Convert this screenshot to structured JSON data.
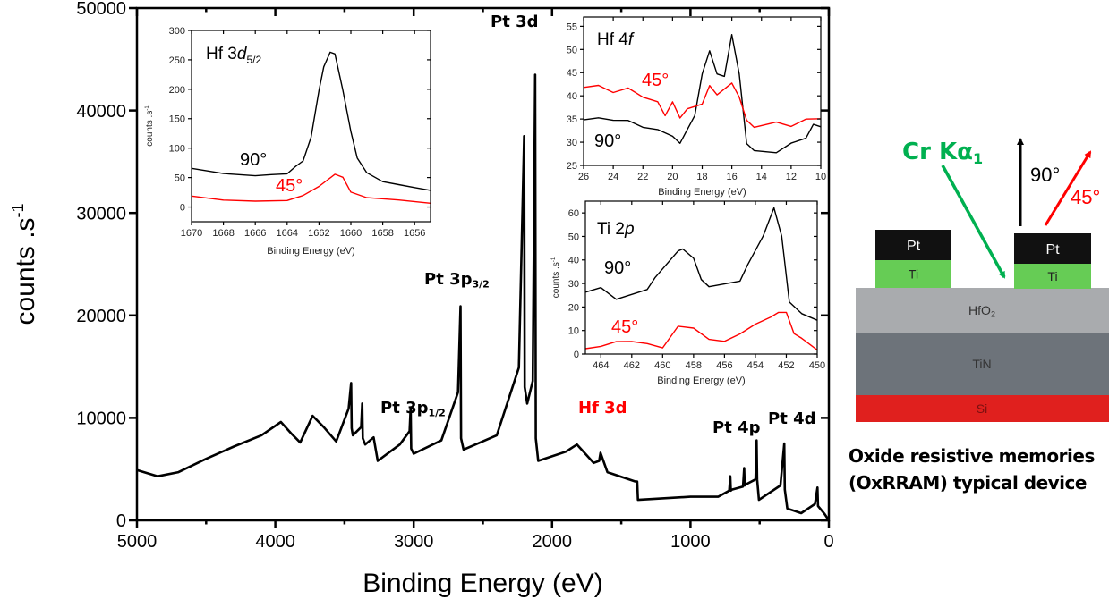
{
  "chart_data": [
    {
      "type": "line",
      "xlabel": "Binding Energy (eV)",
      "ylabel": "counts .s-1",
      "xlim": [
        5000,
        0
      ],
      "ylim": [
        0,
        50000
      ],
      "x_reversed": true,
      "xticks": [
        5000,
        4000,
        3000,
        2000,
        1000,
        0
      ],
      "yticks": [
        0,
        10000,
        20000,
        30000,
        40000,
        50000
      ],
      "annotations": [
        {
          "text": "Pt 3d",
          "x": 2120,
          "color": "#000000"
        },
        {
          "text": "Pt 3p",
          "sub": "3/2",
          "x": 2660,
          "color": "#000000"
        },
        {
          "text": "Pt 3p",
          "sub": "1/2",
          "x": 3020,
          "color": "#000000"
        },
        {
          "text": "Hf 3d",
          "x": 1660,
          "color": "#ff0000"
        },
        {
          "text": "Pt 4p",
          "x": 520,
          "color": "#000000"
        },
        {
          "text": "Pt 4d",
          "x": 320,
          "color": "#000000"
        }
      ],
      "series": [
        {
          "color": "#000000",
          "x": [
            5000,
            4850,
            4700,
            4500,
            4300,
            4100,
            3960,
            3880,
            3820,
            3730,
            3650,
            3560,
            3470,
            3452,
            3448,
            3440,
            3380,
            3372,
            3368,
            3350,
            3290,
            3260,
            3100,
            3030,
            3022,
            3018,
            3000,
            2800,
            2680,
            2662,
            2658,
            2640,
            2400,
            2240,
            2202,
            2198,
            2180,
            2140,
            2122,
            2118,
            2100,
            1900,
            1820,
            1700,
            1660,
            1650,
            1600,
            1400,
            1385,
            1380,
            1000,
            800,
            720,
            712,
            708,
            700,
            620,
            612,
            608,
            600,
            530,
            522,
            518,
            505,
            350,
            322,
            318,
            300,
            200,
            100,
            82,
            78,
            30,
            0
          ],
          "y": [
            4900,
            4300,
            4700,
            6000,
            7200,
            8300,
            9600,
            8400,
            7600,
            10200,
            9100,
            7700,
            10900,
            13400,
            9000,
            8300,
            9100,
            11400,
            8000,
            7400,
            8100,
            5800,
            7400,
            8700,
            11000,
            7000,
            6500,
            7800,
            12500,
            20900,
            8000,
            6900,
            8300,
            14900,
            37500,
            13000,
            11400,
            13600,
            43500,
            8000,
            5800,
            6700,
            7400,
            5600,
            5800,
            6600,
            4700,
            3800,
            3800,
            2000,
            2300,
            2300,
            2900,
            4300,
            2900,
            3000,
            3300,
            5100,
            3400,
            3500,
            4000,
            7800,
            4000,
            2000,
            3400,
            7500,
            3000,
            1150,
            700,
            1600,
            3200,
            1400,
            600,
            0
          ]
        }
      ]
    },
    {
      "type": "line",
      "title": "Hf 3d",
      "title_sub": "5/2",
      "xlabel": "Binding Energy (eV)",
      "ylabel": "counts .s-1",
      "xlim": [
        1670,
        1655
      ],
      "ylim": [
        -25,
        300
      ],
      "xticks": [
        1670,
        1668,
        1666,
        1664,
        1662,
        1660,
        1658,
        1656
      ],
      "yticks": [
        0,
        50,
        100,
        150,
        200,
        250,
        300
      ],
      "series": [
        {
          "name": "90°",
          "color": "#000000",
          "x": [
            1670,
            1668,
            1666,
            1665,
            1664,
            1663.5,
            1663,
            1662.5,
            1662,
            1661.7,
            1661.3,
            1661,
            1660.5,
            1660,
            1659.6,
            1659,
            1658,
            1657,
            1656,
            1655
          ],
          "y": [
            65,
            58,
            55,
            57,
            58,
            70,
            80,
            120,
            200,
            240,
            265,
            262,
            200,
            130,
            85,
            60,
            45,
            40,
            35,
            30
          ]
        },
        {
          "name": "45°",
          "color": "#ff0000",
          "x": [
            1670,
            1668,
            1666,
            1664,
            1663,
            1662,
            1661,
            1660.5,
            1660,
            1659,
            1657,
            1655
          ],
          "y": [
            18,
            13,
            12,
            12,
            20,
            35,
            55,
            50,
            25,
            15,
            10,
            5
          ]
        }
      ]
    },
    {
      "type": "line",
      "title": "Hf 4f",
      "xlabel": "Binding Energy (eV)",
      "xlim": [
        26,
        10
      ],
      "ylim": [
        25,
        57
      ],
      "xticks": [
        26,
        24,
        22,
        20,
        18,
        16,
        14,
        12,
        10
      ],
      "yticks": [
        25,
        30,
        35,
        40,
        45,
        50,
        55
      ],
      "series": [
        {
          "name": "90°",
          "color": "#000000",
          "x": [
            26,
            25,
            24,
            23,
            22,
            21,
            20,
            19.5,
            19,
            18.5,
            18,
            17.5,
            17,
            16.5,
            16,
            15.5,
            15,
            14.5,
            13,
            12,
            11,
            10.5,
            10
          ],
          "y": [
            35,
            35.5,
            35,
            35,
            33.5,
            33,
            31.5,
            30,
            33,
            36,
            45,
            50,
            45,
            44.5,
            53.5,
            45,
            30,
            28.5,
            28,
            30,
            31,
            34,
            33.5
          ]
        },
        {
          "name": "45°",
          "color": "#ff0000",
          "x": [
            26,
            25,
            24,
            23,
            22,
            21,
            20.5,
            20,
            19.5,
            19,
            18,
            17.5,
            17,
            16,
            15.5,
            15,
            14.5,
            13,
            12,
            11,
            10
          ],
          "y": [
            42,
            42.5,
            41,
            42,
            40,
            39,
            36,
            39,
            35.5,
            37.5,
            38.5,
            42.5,
            40.5,
            43,
            40,
            35,
            33.5,
            34.5,
            33.5,
            35,
            35
          ]
        }
      ]
    },
    {
      "type": "line",
      "title": "Ti 2p",
      "xlabel": "Binding Energy (eV)",
      "ylabel": "counts .s-1",
      "xlim": [
        465,
        450
      ],
      "ylim": [
        0,
        65
      ],
      "xticks": [
        464,
        462,
        460,
        458,
        456,
        454,
        452,
        450
      ],
      "yticks": [
        0,
        10,
        20,
        30,
        40,
        50,
        60
      ],
      "series": [
        {
          "name": "90°",
          "color": "#000000",
          "x": [
            465,
            464,
            463,
            462,
            461,
            460.5,
            459,
            458.7,
            458,
            457.5,
            457,
            456,
            455,
            454.5,
            453.5,
            452.8,
            452.3,
            451.8,
            451,
            450
          ],
          "y": [
            27,
            29,
            24,
            26,
            28,
            33,
            44,
            45,
            41,
            32,
            29,
            30,
            31,
            38,
            50,
            62,
            50,
            22,
            17,
            14
          ]
        },
        {
          "name": "45°",
          "color": "#ff0000",
          "x": [
            465,
            464,
            463,
            462,
            461,
            460,
            459,
            458,
            457,
            456,
            455,
            454,
            453,
            452.5,
            452,
            451.5,
            451,
            450
          ],
          "y": [
            3,
            4,
            6,
            6,
            5,
            3,
            12,
            11,
            6,
            5,
            8,
            12,
            15,
            17,
            17,
            8,
            6,
            1
          ]
        }
      ]
    }
  ],
  "device": {
    "beam_label": "Cr Kα",
    "beam_sub": "1",
    "beam_color": "#00b050",
    "angle_90": "90°",
    "angle_45": "45°",
    "layers": [
      {
        "label": "HfO",
        "sub": "2",
        "color": "#a9abae"
      },
      {
        "label": "TiN",
        "color": "#6d737a"
      },
      {
        "label": "Si",
        "color": "#e0201e"
      }
    ],
    "electrode_top": {
      "label": "Pt",
      "color": "#111111"
    },
    "electrode_bottom": {
      "label": "Ti",
      "color": "#66cc55"
    },
    "caption_line1": "Oxide resistive memories",
    "caption_line2": "(OxRRAM) typical device"
  }
}
